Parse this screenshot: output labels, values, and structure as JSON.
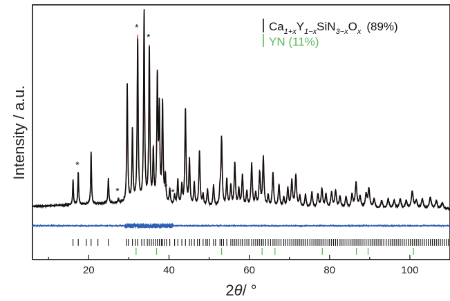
{
  "chart_data": {
    "type": "line",
    "xlabel_prefix": "2",
    "xlabel_theta": "θ",
    "xlabel_suffix": "/ °",
    "ylabel": "Intensity / a.u.",
    "xlim": [
      6,
      110
    ],
    "x_ticks": [
      20,
      40,
      60,
      80,
      100
    ],
    "y_ticks_shown": false,
    "legend": {
      "placement": "top-right",
      "entries": [
        {
          "label": "Ca1+xY1-xSiN3-xOx (89%)",
          "color": "#111111"
        },
        {
          "label": "YN (11%)",
          "color": "#5cb85c"
        }
      ]
    },
    "legend_text": {
      "main_parts": [
        "Ca",
        "1+x",
        "Y",
        "1−x",
        "SiN",
        "3−x",
        "O",
        "x"
      ],
      "main_pct": "(89%)",
      "yn": "YN (11%)"
    },
    "series": [
      {
        "name": "observed",
        "color": "#111111"
      },
      {
        "name": "calculated",
        "color": "#e8322a"
      },
      {
        "name": "difference",
        "color": "#2f5fb3"
      }
    ],
    "background": {
      "x": [
        6,
        15,
        25,
        30,
        33,
        38,
        45,
        60,
        80,
        110
      ],
      "y": [
        1.4,
        2.2,
        3.0,
        3.1,
        2.8,
        2.1,
        1.2,
        0.4,
        0.2,
        0.1
      ]
    },
    "peaks": [
      {
        "x": 16.1,
        "h": 13
      },
      {
        "x": 17.4,
        "h": 17
      },
      {
        "x": 20.6,
        "h": 27
      },
      {
        "x": 24.9,
        "h": 13
      },
      {
        "x": 27.4,
        "h": 2
      },
      {
        "x": 29.6,
        "h": 62
      },
      {
        "x": 30.9,
        "h": 38
      },
      {
        "x": 32.2,
        "h": 88
      },
      {
        "x": 33.8,
        "h": 100
      },
      {
        "x": 35.1,
        "h": 82
      },
      {
        "x": 36.1,
        "h": 27
      },
      {
        "x": 37.1,
        "h": 65
      },
      {
        "x": 37.6,
        "h": 47
      },
      {
        "x": 38.4,
        "h": 52
      },
      {
        "x": 39.1,
        "h": 14
      },
      {
        "x": 40.2,
        "h": 8
      },
      {
        "x": 41.4,
        "h": 5
      },
      {
        "x": 42.2,
        "h": 13
      },
      {
        "x": 43.2,
        "h": 10
      },
      {
        "x": 44.1,
        "h": 50
      },
      {
        "x": 45.1,
        "h": 24
      },
      {
        "x": 46.3,
        "h": 12
      },
      {
        "x": 47.6,
        "h": 29
      },
      {
        "x": 48.5,
        "h": 6
      },
      {
        "x": 49.6,
        "h": 9
      },
      {
        "x": 51.1,
        "h": 11
      },
      {
        "x": 52.7,
        "h": 7
      },
      {
        "x": 53.1,
        "h": 36
      },
      {
        "x": 54.4,
        "h": 14
      },
      {
        "x": 55.4,
        "h": 11
      },
      {
        "x": 56.4,
        "h": 23
      },
      {
        "x": 57.4,
        "h": 9
      },
      {
        "x": 58.3,
        "h": 17
      },
      {
        "x": 59.4,
        "h": 8
      },
      {
        "x": 60.6,
        "h": 23
      },
      {
        "x": 61.6,
        "h": 7
      },
      {
        "x": 62.6,
        "h": 18
      },
      {
        "x": 63.5,
        "h": 26
      },
      {
        "x": 64.7,
        "h": 6
      },
      {
        "x": 65.9,
        "h": 18
      },
      {
        "x": 67.4,
        "h": 12
      },
      {
        "x": 68.6,
        "h": 5
      },
      {
        "x": 69.6,
        "h": 10
      },
      {
        "x": 70.6,
        "h": 14
      },
      {
        "x": 71.6,
        "h": 17
      },
      {
        "x": 72.6,
        "h": 6
      },
      {
        "x": 74.0,
        "h": 7
      },
      {
        "x": 75.6,
        "h": 8
      },
      {
        "x": 77.1,
        "h": 7
      },
      {
        "x": 78.1,
        "h": 10
      },
      {
        "x": 79.1,
        "h": 7
      },
      {
        "x": 80.5,
        "h": 8
      },
      {
        "x": 81.5,
        "h": 9
      },
      {
        "x": 82.6,
        "h": 6
      },
      {
        "x": 84.1,
        "h": 6
      },
      {
        "x": 85.6,
        "h": 7
      },
      {
        "x": 86.6,
        "h": 13
      },
      {
        "x": 87.6,
        "h": 6
      },
      {
        "x": 89.1,
        "h": 7
      },
      {
        "x": 89.8,
        "h": 10
      },
      {
        "x": 91.1,
        "h": 5
      },
      {
        "x": 93.0,
        "h": 4
      },
      {
        "x": 94.6,
        "h": 5
      },
      {
        "x": 96.1,
        "h": 4
      },
      {
        "x": 97.6,
        "h": 5
      },
      {
        "x": 99.1,
        "h": 4
      },
      {
        "x": 100.6,
        "h": 9
      },
      {
        "x": 101.6,
        "h": 4
      },
      {
        "x": 103.1,
        "h": 5
      },
      {
        "x": 105.1,
        "h": 6
      },
      {
        "x": 106.6,
        "h": 4
      },
      {
        "x": 108.1,
        "h": 3
      }
    ],
    "impurity_peaks": [
      17.4,
      27.4,
      32.2,
      35.1,
      39.4,
      41.2
    ],
    "impurity_marker": "*",
    "reflections_main": [
      16.1,
      17.4,
      19.4,
      20.6,
      22.3,
      24.9,
      29.4,
      29.9,
      30.9,
      31.6,
      32.2,
      33.2,
      33.8,
      34.6,
      35.1,
      35.6,
      36.1,
      36.6,
      37.1,
      37.6,
      38.1,
      38.4,
      38.9,
      39.4,
      40.2,
      41.4,
      42.2,
      43.2,
      44.1,
      45.1,
      45.6,
      46.3,
      47.1,
      47.6,
      48.5,
      49.2,
      49.6,
      50.1,
      51.1,
      51.6,
      52.7,
      53.1,
      53.6,
      54.4,
      55.4,
      55.9,
      56.4,
      56.9,
      57.4,
      57.9,
      58.3,
      58.9,
      59.4,
      59.9,
      60.6,
      61.1,
      61.6,
      62.1,
      62.6,
      63.1,
      63.5,
      64.1,
      64.7,
      65.3,
      65.9,
      66.4,
      66.9,
      67.4,
      67.9,
      68.6,
      69.1,
      69.6,
      70.1,
      70.6,
      71.1,
      71.6,
      72.1,
      72.6,
      73.1,
      73.6,
      74.0,
      74.5,
      75.1,
      75.6,
      76.1,
      76.6,
      77.1,
      77.6,
      78.1,
      78.6,
      79.1,
      79.6,
      80.0,
      80.5,
      81.0,
      81.5,
      82.0,
      82.6,
      83.1,
      83.6,
      84.1,
      84.6,
      85.1,
      85.6,
      86.1,
      86.6,
      87.1,
      87.6,
      88.1,
      88.6,
      89.1,
      89.6,
      90.1,
      90.6,
      91.1,
      91.6,
      92.1,
      92.6,
      93.0,
      93.5,
      94.1,
      94.6,
      95.1,
      95.6,
      96.1,
      96.6,
      97.1,
      97.6,
      98.1,
      98.6,
      99.1,
      99.6,
      100.1,
      100.6,
      101.1,
      101.6,
      102.1,
      102.6,
      103.1,
      103.6,
      104.1,
      104.6,
      105.1,
      105.6,
      106.1,
      106.6,
      107.1,
      107.6,
      108.1,
      108.6,
      109.1,
      109.6
    ],
    "reflections_yn": [
      31.8,
      36.9,
      53.1,
      63.2,
      66.4,
      78.2,
      86.7,
      89.6,
      100.9
    ]
  }
}
